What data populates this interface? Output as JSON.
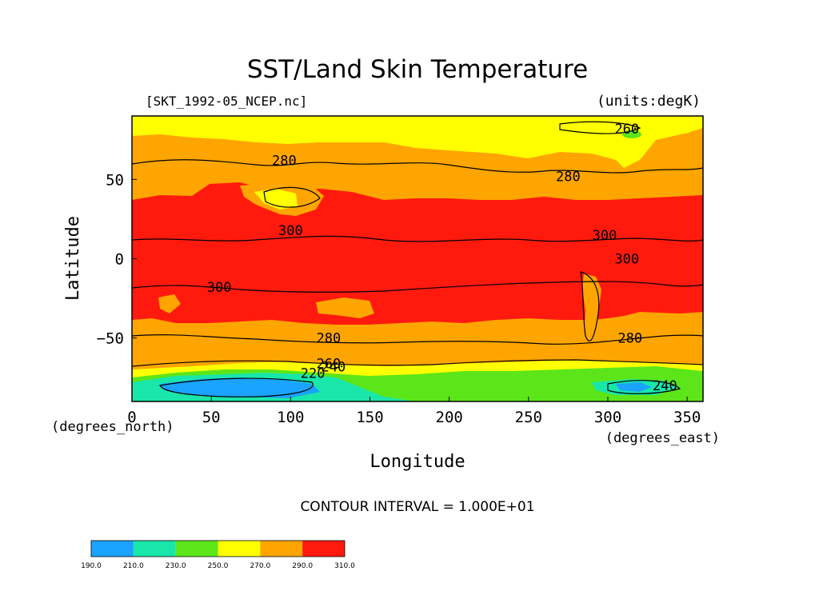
{
  "chart_data": {
    "type": "contour",
    "title": "SST/Land Skin Temperature",
    "subtitle_left": "[SKT_1992-05_NCEP.nc]",
    "subtitle_right": "(units:degK)",
    "xlabel": "Longitude",
    "ylabel": "Latitude",
    "x_units_label": "(degrees_east)",
    "y_units_label": "(degrees_north)",
    "xlim": [
      0,
      360
    ],
    "ylim": [
      -90,
      90
    ],
    "x_ticks": [
      0,
      50,
      100,
      150,
      200,
      250,
      300,
      350
    ],
    "y_ticks": [
      -50,
      0,
      50
    ],
    "contour_interval_text": "CONTOUR INTERVAL = 1.000E+01",
    "contour_labels": [
      {
        "text": "260",
        "lon": 312,
        "lat": 82
      },
      {
        "text": "280",
        "lon": 96,
        "lat": 62
      },
      {
        "text": "280",
        "lon": 275,
        "lat": 52
      },
      {
        "text": "300",
        "lon": 100,
        "lat": 18
      },
      {
        "text": "300",
        "lon": 55,
        "lat": -18
      },
      {
        "text": "300",
        "lon": 298,
        "lat": 15
      },
      {
        "text": "300",
        "lon": 312,
        "lat": 0
      },
      {
        "text": "280",
        "lon": 124,
        "lat": -50
      },
      {
        "text": "280",
        "lon": 314,
        "lat": -50
      },
      {
        "text": "260",
        "lon": 124,
        "lat": -66
      },
      {
        "text": "240",
        "lon": 127,
        "lat": -68
      },
      {
        "text": "220",
        "lon": 114,
        "lat": -72
      },
      {
        "text": "240",
        "lon": 336,
        "lat": -80
      }
    ],
    "colorbar": {
      "levels": [
        "190.0",
        "210.0",
        "230.0",
        "250.0",
        "270.0",
        "290.0",
        "310.0"
      ],
      "colors": [
        "#1aa3ff",
        "#19e6a9",
        "#5ce619",
        "#ffff00",
        "#ffa500",
        "#ff1a0d"
      ]
    }
  }
}
